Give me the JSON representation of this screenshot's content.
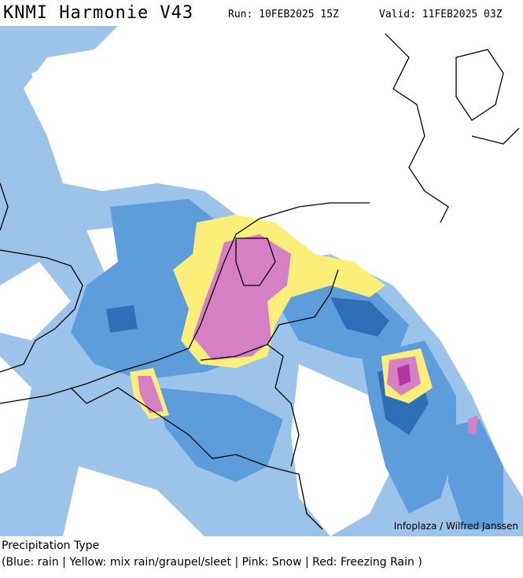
{
  "header": {
    "title": "KNMI Harmonie V43",
    "run": "Run: 10FEB2025 15Z",
    "valid": "Valid: 11FEB2025 03Z"
  },
  "map": {
    "credit": "Infoplaza / Wilfred Janssen"
  },
  "footer": {
    "legend_title": "Precipitation Type",
    "legend_text": "(Blue: rain | Yellow: mix rain/graupel/sleet | Pink: Snow | Red: Freezing Rain )"
  }
}
